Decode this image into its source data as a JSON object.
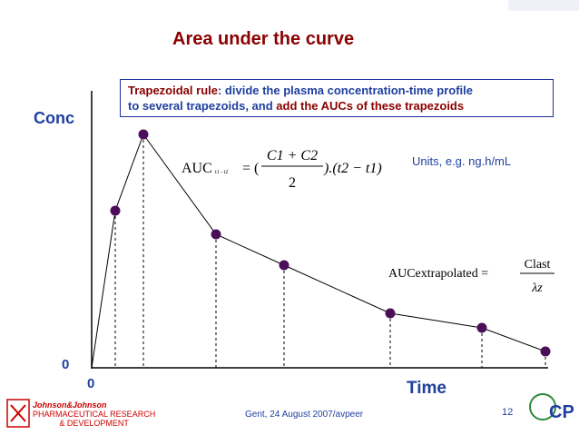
{
  "slide": {
    "title": "Area under the curve",
    "definition": {
      "line1": {
        "term": "Trapezoidal rule",
        "text": ": divide the plasma concentration-time profile"
      },
      "line2": {
        "text": "to several trapezoids, and ",
        "emphasis": "add the AUCs of these trapezoids"
      }
    },
    "y_axis_label": "Conc",
    "y_origin_label": "0",
    "x_origin_label": "0",
    "x_axis_label": "Time",
    "units_note": "Units, e.g. ng.h/mL",
    "formula_trapezoid": {
      "lhs": "AUC",
      "subscript": "t1 - t2",
      "open": "= (",
      "numerator": "C1 + C2",
      "denominator": "2",
      "close": ").(t2 − t1)"
    },
    "formula_extrapolated": {
      "lhs": "AUCextrapolated =",
      "numerator": "Clast",
      "denominator": "λz"
    },
    "footer": {
      "text": "Gent, 24 August 2007/avpeer",
      "page": "12",
      "logo_lines": [
        "Johnson&Johnson",
        "PHARMACEUTICAL RESEARCH",
        "& DEVELOPMENT"
      ]
    }
  }
}
